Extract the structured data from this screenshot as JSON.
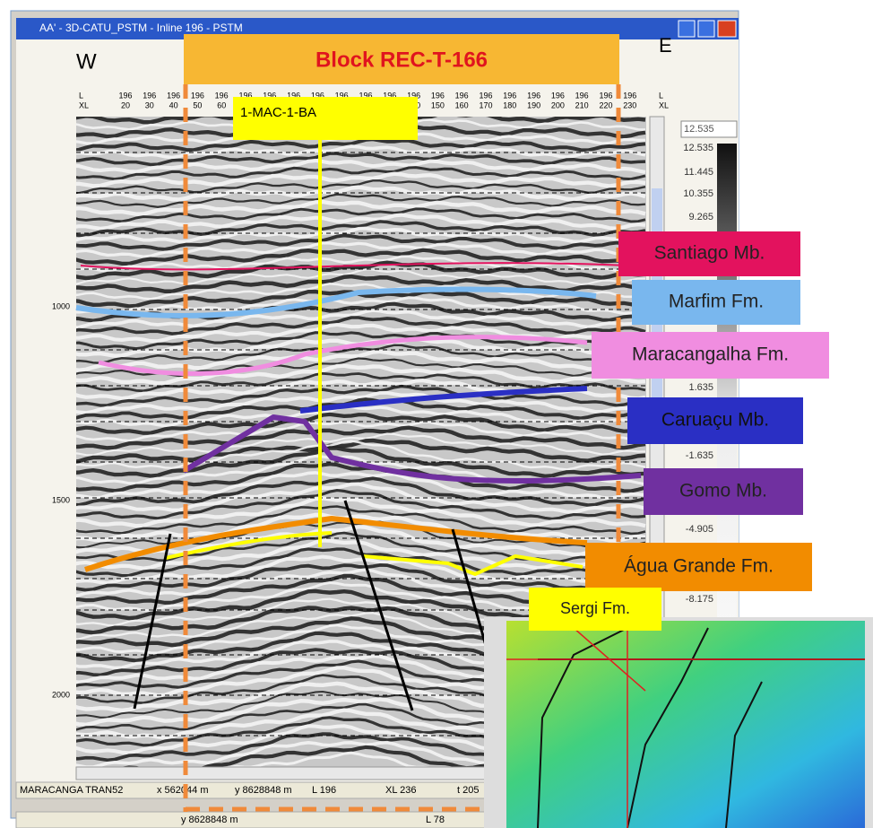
{
  "window": {
    "title": "AA' - 3D-CATU_PSTM - Inline 196 - PSTM"
  },
  "directions": {
    "west": "W",
    "east": "E"
  },
  "block_label": "Block REC-T-166",
  "well_label": "1-MAC-1-BA",
  "header": {
    "row_labels": [
      "L",
      "XL"
    ],
    "inline": "196",
    "crosslines": [
      20,
      30,
      40,
      50,
      60,
      70,
      80,
      90,
      100,
      110,
      120,
      130,
      140,
      150,
      160,
      170,
      180,
      190,
      200,
      210,
      220,
      230
    ]
  },
  "depth_ticks": [
    1000,
    1500,
    2000
  ],
  "color_scale": {
    "current": "12.535",
    "ticks": [
      "12.535",
      "11.445",
      "10.355",
      "9.265",
      "1.635",
      "-1.635",
      "-4.905",
      "-8.175"
    ]
  },
  "formations": [
    {
      "name": "Santiago Mb.",
      "color": "#e3125e"
    },
    {
      "name": "Marfim Fm.",
      "color": "#79b7ee"
    },
    {
      "name": "Maracangalha Fm.",
      "color": "#f08de0"
    },
    {
      "name": "Caruaçu Mb.",
      "color": "#2a2fc4"
    },
    {
      "name": "Gomo Mb.",
      "color": "#7030a0"
    },
    {
      "name": "Água Grande Fm.",
      "color": "#f28c00"
    },
    {
      "name": "Sergi Fm.",
      "color": "#ffff00"
    }
  ],
  "status_bar": [
    "MARACANGA TRAN52",
    "x 562044 m",
    "y 8628848 m",
    "L 196",
    "XL 236",
    "t 205"
  ],
  "bottom_bar": [
    "y 8628848 m",
    "L 78"
  ]
}
